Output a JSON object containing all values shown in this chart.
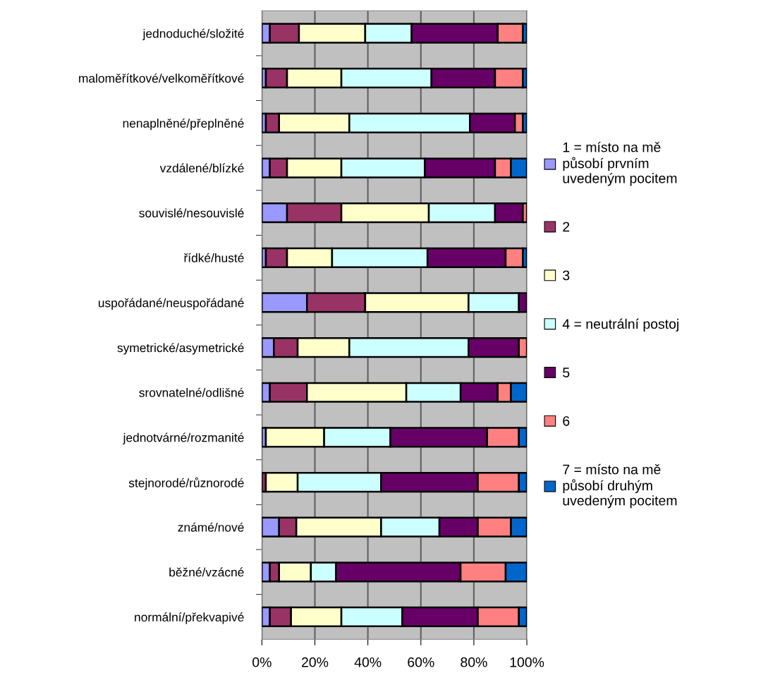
{
  "chart_data": {
    "type": "bar",
    "orientation": "horizontal",
    "stacked": true,
    "categories": [
      "jednoduché/složité",
      "maloměřítkové/velkoměřítkové",
      "nenaplněné/přeplněné",
      "vzdálené/blízké",
      "souvislé/nesouvislé",
      "řídké/husté",
      "uspořádané/neuspořádané",
      "symetrické/asymetrické",
      "srovnatelné/odlišné",
      "jednotvárné/rozmanité",
      "stejnorodé/různorodé",
      "známé/nové",
      "běžné/vzácné",
      "normální/překvapivé"
    ],
    "series": [
      {
        "name": "1 = místo na mě\npůsobí prvním\nuvedeným pocitem",
        "color": "#9999ff",
        "values": [
          3,
          1.5,
          1.5,
          3,
          9.5,
          1.5,
          17,
          4.5,
          3,
          1.5,
          null,
          6.5,
          3,
          3
        ]
      },
      {
        "name": "2",
        "color": "#993366",
        "values": [
          11,
          8,
          5,
          6.5,
          20.5,
          8,
          22,
          9,
          14,
          null,
          1.5,
          6.5,
          3.5,
          8
        ]
      },
      {
        "name": "3",
        "color": "#ffffcc",
        "values": [
          25,
          20.5,
          26.5,
          20.5,
          33,
          17,
          39,
          19.5,
          37.5,
          22,
          12,
          32,
          12,
          19
        ]
      },
      {
        "name": "4 = neutrální postoj",
        "color": "#ccffff",
        "values": [
          17.5,
          34,
          45.5,
          31.5,
          25,
          36,
          19,
          45,
          20.5,
          25,
          31.5,
          22,
          9.5,
          23
        ]
      },
      {
        "name": "5",
        "color": "#660066",
        "values": [
          32.5,
          24,
          17,
          26.5,
          10.5,
          29.5,
          3,
          19,
          14,
          36.5,
          36.5,
          14.5,
          47,
          28.5
        ]
      },
      {
        "name": "6",
        "color": "#ff8080",
        "values": [
          9.5,
          10.5,
          3,
          6,
          1.5,
          6.5,
          null,
          3,
          5,
          12,
          15.5,
          12.5,
          17,
          15.5
        ]
      },
      {
        "name": "7 = místo na mě\npůsobí druhým\nuvedeným pocitem",
        "color": "#0066cc",
        "values": [
          1.5,
          1.5,
          1.5,
          6,
          null,
          1.5,
          null,
          null,
          6,
          3,
          3,
          6,
          8,
          3
        ]
      }
    ],
    "xlim": [
      0,
      100
    ],
    "xticks": [
      {
        "value": 0,
        "label": "0%"
      },
      {
        "value": 20,
        "label": "20%"
      },
      {
        "value": 40,
        "label": "40%"
      },
      {
        "value": 60,
        "label": "60%"
      },
      {
        "value": 80,
        "label": "80%"
      },
      {
        "value": 100,
        "label": "100%"
      }
    ],
    "grid": "x",
    "legend": "right"
  }
}
